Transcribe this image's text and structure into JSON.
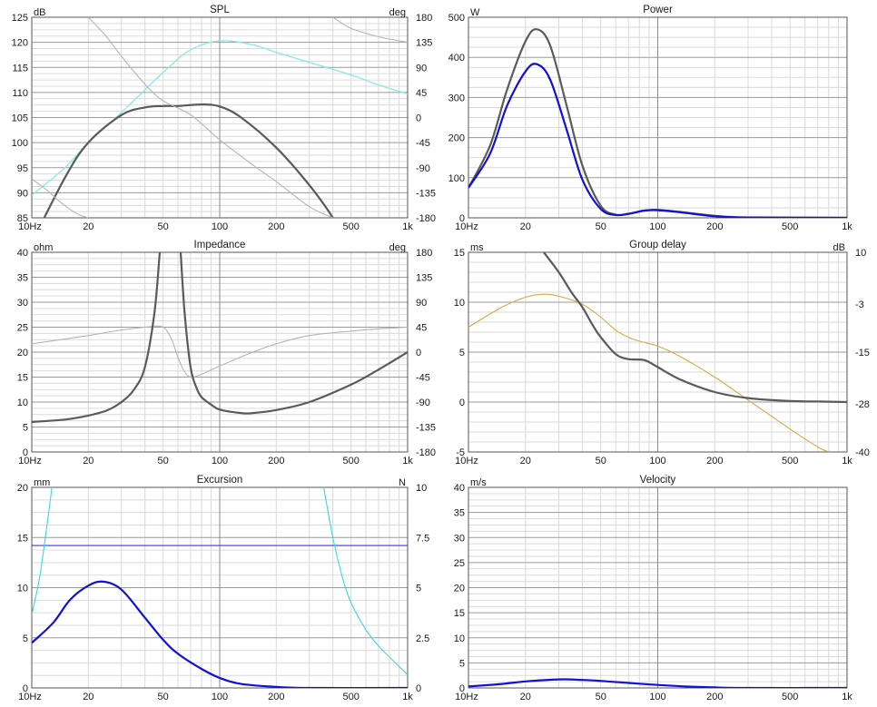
{
  "chart_data": [
    {
      "id": "spl",
      "type": "line",
      "title": "SPL",
      "y_unit_label": "dB",
      "y2_unit_label": "deg",
      "x_tick_labels": [
        "10Hz",
        "20",
        "50",
        "100",
        "200",
        "500",
        "1k"
      ],
      "x_scale": "log",
      "xlim": [
        10,
        1000
      ],
      "ylim": [
        85,
        125
      ],
      "y_ticks": [
        85,
        90,
        95,
        100,
        105,
        110,
        115,
        120,
        125
      ],
      "y2lim": [
        -180,
        180
      ],
      "y2_ticks": [
        -180,
        -135,
        -90,
        -45,
        0,
        45,
        90,
        135,
        180
      ],
      "grid": true,
      "series": [
        {
          "axis": "y",
          "color": "#5aa5a7",
          "points": [
            [
              10,
              89.5
            ],
            [
              15,
              95
            ],
            [
              20,
              100
            ],
            [
              30,
              106
            ],
            [
              50,
              114
            ],
            [
              70,
              118.5
            ],
            [
              100,
              120.3
            ],
            [
              150,
              119.5
            ],
            [
              200,
              118
            ],
            [
              300,
              116
            ],
            [
              500,
              113.5
            ],
            [
              700,
              111.5
            ],
            [
              1000,
              109.7
            ]
          ]
        },
        {
          "axis": "y",
          "color": "#8ef0f0",
          "points": [
            [
              10,
              89.5
            ],
            [
              15,
              95
            ],
            [
              20,
              100
            ],
            [
              30,
              106
            ],
            [
              50,
              114
            ],
            [
              70,
              118.5
            ],
            [
              100,
              120.3
            ],
            [
              150,
              119.5
            ],
            [
              200,
              118
            ],
            [
              300,
              116
            ],
            [
              500,
              113.5
            ],
            [
              700,
              111.5
            ],
            [
              1000,
              109.7
            ]
          ]
        },
        {
          "axis": "y",
          "color": "#5a5a5a",
          "points": [
            [
              10,
              80
            ],
            [
              15,
              93
            ],
            [
              20,
              100
            ],
            [
              30,
              105.5
            ],
            [
              40,
              107
            ],
            [
              50,
              107.3
            ],
            [
              60,
              107.3
            ],
            [
              80,
              107.6
            ],
            [
              100,
              107.2
            ],
            [
              130,
              105
            ],
            [
              200,
              99
            ],
            [
              300,
              91.5
            ],
            [
              400,
              85
            ],
            [
              450,
              81
            ]
          ]
        },
        {
          "axis": "y2",
          "color": "#b4b4b4",
          "points": [
            [
              10,
              -110
            ],
            [
              12,
              -130
            ],
            [
              14,
              -150
            ],
            [
              16,
              -165
            ],
            [
              18,
              -175
            ],
            [
              20,
              -180
            ]
          ]
        },
        {
          "axis": "y2",
          "color": "#b4b4b4",
          "points": [
            [
              20,
              180
            ],
            [
              25,
              145
            ],
            [
              30,
              110
            ],
            [
              40,
              60
            ],
            [
              50,
              30
            ],
            [
              70,
              5
            ],
            [
              100,
              -40
            ],
            [
              150,
              -85
            ],
            [
              200,
              -115
            ],
            [
              300,
              -160
            ],
            [
              400,
              -180
            ]
          ]
        },
        {
          "axis": "y2",
          "color": "#b4b4b4",
          "points": [
            [
              400,
              180
            ],
            [
              500,
              160
            ],
            [
              700,
              145
            ],
            [
              1000,
              135
            ]
          ]
        }
      ]
    },
    {
      "id": "power",
      "type": "line",
      "title": "Power",
      "y_unit_label": "W",
      "x_tick_labels": [
        "10Hz",
        "20",
        "50",
        "100",
        "200",
        "500",
        "1k"
      ],
      "x_scale": "log",
      "xlim": [
        10,
        1000
      ],
      "ylim": [
        0,
        500
      ],
      "y_ticks": [
        0,
        100,
        200,
        300,
        400,
        500
      ],
      "grid": true,
      "series": [
        {
          "axis": "y",
          "color": "#5a5a5a",
          "points": [
            [
              10,
              75
            ],
            [
              13,
              180
            ],
            [
              16,
              320
            ],
            [
              20,
              440
            ],
            [
              23,
              470
            ],
            [
              27,
              430
            ],
            [
              33,
              280
            ],
            [
              40,
              130
            ],
            [
              50,
              30
            ],
            [
              60,
              8
            ],
            [
              70,
              10
            ],
            [
              85,
              18
            ],
            [
              100,
              20
            ],
            [
              130,
              15
            ],
            [
              200,
              5
            ],
            [
              300,
              1
            ],
            [
              1000,
              0
            ]
          ]
        },
        {
          "axis": "y",
          "color": "#1010d8",
          "points": [
            [
              10,
              75
            ],
            [
              13,
              160
            ],
            [
              16,
              280
            ],
            [
              20,
              365
            ],
            [
              23,
              383
            ],
            [
              27,
              345
            ],
            [
              33,
              220
            ],
            [
              40,
              95
            ],
            [
              50,
              22
            ],
            [
              60,
              7
            ],
            [
              70,
              10
            ],
            [
              85,
              18
            ],
            [
              100,
              19
            ],
            [
              130,
              14
            ],
            [
              200,
              4
            ],
            [
              300,
              1
            ],
            [
              1000,
              0
            ]
          ]
        }
      ]
    },
    {
      "id": "impedance",
      "type": "line",
      "title": "Impedance",
      "y_unit_label": "ohm",
      "y2_unit_label": "deg",
      "x_tick_labels": [
        "10Hz",
        "20",
        "50",
        "100",
        "200",
        "500",
        "1k"
      ],
      "x_scale": "log",
      "xlim": [
        10,
        1000
      ],
      "ylim": [
        0,
        40
      ],
      "y_ticks": [
        0,
        5,
        10,
        15,
        20,
        25,
        30,
        35,
        40
      ],
      "y2lim": [
        -180,
        180
      ],
      "y2_ticks": [
        -180,
        -135,
        -90,
        -45,
        0,
        45,
        90,
        135,
        180
      ],
      "grid": true,
      "series": [
        {
          "axis": "y2",
          "color": "#b4b4b4",
          "points": [
            [
              10,
              15
            ],
            [
              20,
              30
            ],
            [
              30,
              40
            ],
            [
              40,
              45
            ],
            [
              48,
              47
            ],
            [
              52,
              40
            ],
            [
              56,
              20
            ],
            [
              60,
              -10
            ],
            [
              65,
              -35
            ],
            [
              70,
              -45
            ],
            [
              80,
              -40
            ],
            [
              100,
              -25
            ],
            [
              150,
              0
            ],
            [
              200,
              15
            ],
            [
              300,
              30
            ],
            [
              500,
              38
            ],
            [
              700,
              42
            ],
            [
              1000,
              45
            ]
          ]
        },
        {
          "axis": "y",
          "color": "#5a5a5a",
          "points": [
            [
              10,
              6
            ],
            [
              15,
              6.5
            ],
            [
              20,
              7.3
            ],
            [
              25,
              8.3
            ],
            [
              30,
              10
            ],
            [
              35,
              12.5
            ],
            [
              40,
              17
            ],
            [
              45,
              28
            ],
            [
              48,
              40
            ]
          ]
        },
        {
          "axis": "y",
          "color": "#5a5a5a",
          "points": [
            [
              62,
              40
            ],
            [
              65,
              28
            ],
            [
              70,
              17
            ],
            [
              75,
              13
            ],
            [
              80,
              11
            ],
            [
              90,
              9.5
            ],
            [
              100,
              8.5
            ],
            [
              130,
              7.8
            ],
            [
              150,
              7.8
            ],
            [
              200,
              8.4
            ],
            [
              300,
              10
            ],
            [
              500,
              13.5
            ],
            [
              700,
              16.5
            ],
            [
              1000,
              20
            ]
          ]
        }
      ]
    },
    {
      "id": "group-delay",
      "type": "line",
      "title": "Group delay",
      "y_unit_label": "ms",
      "y2_unit_label": "dB",
      "x_tick_labels": [
        "10Hz",
        "20",
        "50",
        "100",
        "200",
        "500",
        "1k"
      ],
      "x_scale": "log",
      "xlim": [
        10,
        1000
      ],
      "ylim": [
        -5,
        15
      ],
      "y_ticks": [
        -5,
        0,
        5,
        10,
        15
      ],
      "y2lim": [
        -40,
        10
      ],
      "y2_ticks": [
        -40,
        -28,
        -15,
        -3,
        10
      ],
      "grid": true,
      "series": [
        {
          "axis": "y",
          "color": "#d8a840",
          "points": [
            [
              10,
              7.5
            ],
            [
              15,
              9.5
            ],
            [
              20,
              10.5
            ],
            [
              25,
              10.8
            ],
            [
              30,
              10.6
            ],
            [
              40,
              9.8
            ],
            [
              50,
              8.5
            ],
            [
              60,
              7.2
            ],
            [
              70,
              6.5
            ],
            [
              80,
              6.1
            ],
            [
              100,
              5.6
            ],
            [
              130,
              4.6
            ],
            [
              200,
              2.5
            ],
            [
              300,
              0.2
            ],
            [
              500,
              -2.7
            ],
            [
              700,
              -4.5
            ],
            [
              800,
              -5
            ]
          ]
        },
        {
          "axis": "y",
          "color": "#5a5a5a",
          "points": [
            [
              25,
              15
            ],
            [
              30,
              13
            ],
            [
              35,
              11
            ],
            [
              40,
              9.5
            ],
            [
              45,
              7.8
            ],
            [
              50,
              6.5
            ],
            [
              60,
              4.8
            ],
            [
              70,
              4.3
            ],
            [
              85,
              4.2
            ],
            [
              100,
              3.5
            ],
            [
              130,
              2.3
            ],
            [
              200,
              1
            ],
            [
              300,
              0.4
            ],
            [
              500,
              0.1
            ],
            [
              700,
              0.05
            ],
            [
              1000,
              0
            ]
          ]
        }
      ]
    },
    {
      "id": "excursion",
      "type": "line",
      "title": "Excursion",
      "y_unit_label": "mm",
      "y2_unit_label": "N",
      "x_tick_labels": [
        "10Hz",
        "20",
        "50",
        "100",
        "200",
        "500",
        "1k"
      ],
      "x_scale": "log",
      "xlim": [
        10,
        1000
      ],
      "ylim": [
        0,
        20
      ],
      "y_ticks": [
        0,
        5,
        10,
        15,
        20
      ],
      "y2lim": [
        0,
        10
      ],
      "y2_ticks": [
        0,
        2.5,
        5,
        7.5,
        10
      ],
      "grid": true,
      "series": [
        {
          "axis": "y",
          "color": "#3a3ad0",
          "points": [
            [
              10,
              14.2
            ],
            [
              1000,
              14.2
            ]
          ]
        },
        {
          "axis": "y",
          "color": "#3ad8e0",
          "points": [
            [
              10,
              7.3
            ],
            [
              11,
              11
            ],
            [
              12,
              16
            ],
            [
              13,
              21
            ]
          ]
        },
        {
          "axis": "y",
          "color": "#3ad8e0",
          "points": [
            [
              350,
              21
            ],
            [
              400,
              15
            ],
            [
              450,
              11
            ],
            [
              500,
              8.5
            ],
            [
              600,
              5.8
            ],
            [
              700,
              4.2
            ],
            [
              850,
              2.6
            ],
            [
              1000,
              1.3
            ]
          ]
        },
        {
          "axis": "y",
          "color": "#1010d8",
          "points": [
            [
              10,
              4.5
            ],
            [
              13,
              6.5
            ],
            [
              16,
              8.8
            ],
            [
              20,
              10.2
            ],
            [
              24,
              10.6
            ],
            [
              30,
              9.8
            ],
            [
              40,
              7
            ],
            [
              50,
              4.8
            ],
            [
              60,
              3.4
            ],
            [
              80,
              1.9
            ],
            [
              100,
              1
            ],
            [
              130,
              0.4
            ],
            [
              200,
              0.1
            ],
            [
              300,
              0
            ],
            [
              1000,
              0
            ]
          ]
        }
      ]
    },
    {
      "id": "velocity",
      "type": "line",
      "title": "Velocity",
      "y_unit_label": "m/s",
      "x_tick_labels": [
        "10Hz",
        "20",
        "50",
        "100",
        "200",
        "500",
        "1k"
      ],
      "x_scale": "log",
      "xlim": [
        10,
        1000
      ],
      "ylim": [
        0,
        40
      ],
      "y_ticks": [
        0,
        5,
        10,
        15,
        20,
        25,
        30,
        35,
        40
      ],
      "grid": true,
      "series": [
        {
          "axis": "y",
          "color": "#1010d8",
          "points": [
            [
              10,
              0.3
            ],
            [
              15,
              0.8
            ],
            [
              20,
              1.3
            ],
            [
              30,
              1.7
            ],
            [
              40,
              1.6
            ],
            [
              50,
              1.4
            ],
            [
              70,
              1
            ],
            [
              100,
              0.6
            ],
            [
              150,
              0.25
            ],
            [
              200,
              0.1
            ],
            [
              300,
              0
            ],
            [
              1000,
              0
            ]
          ]
        }
      ]
    }
  ]
}
